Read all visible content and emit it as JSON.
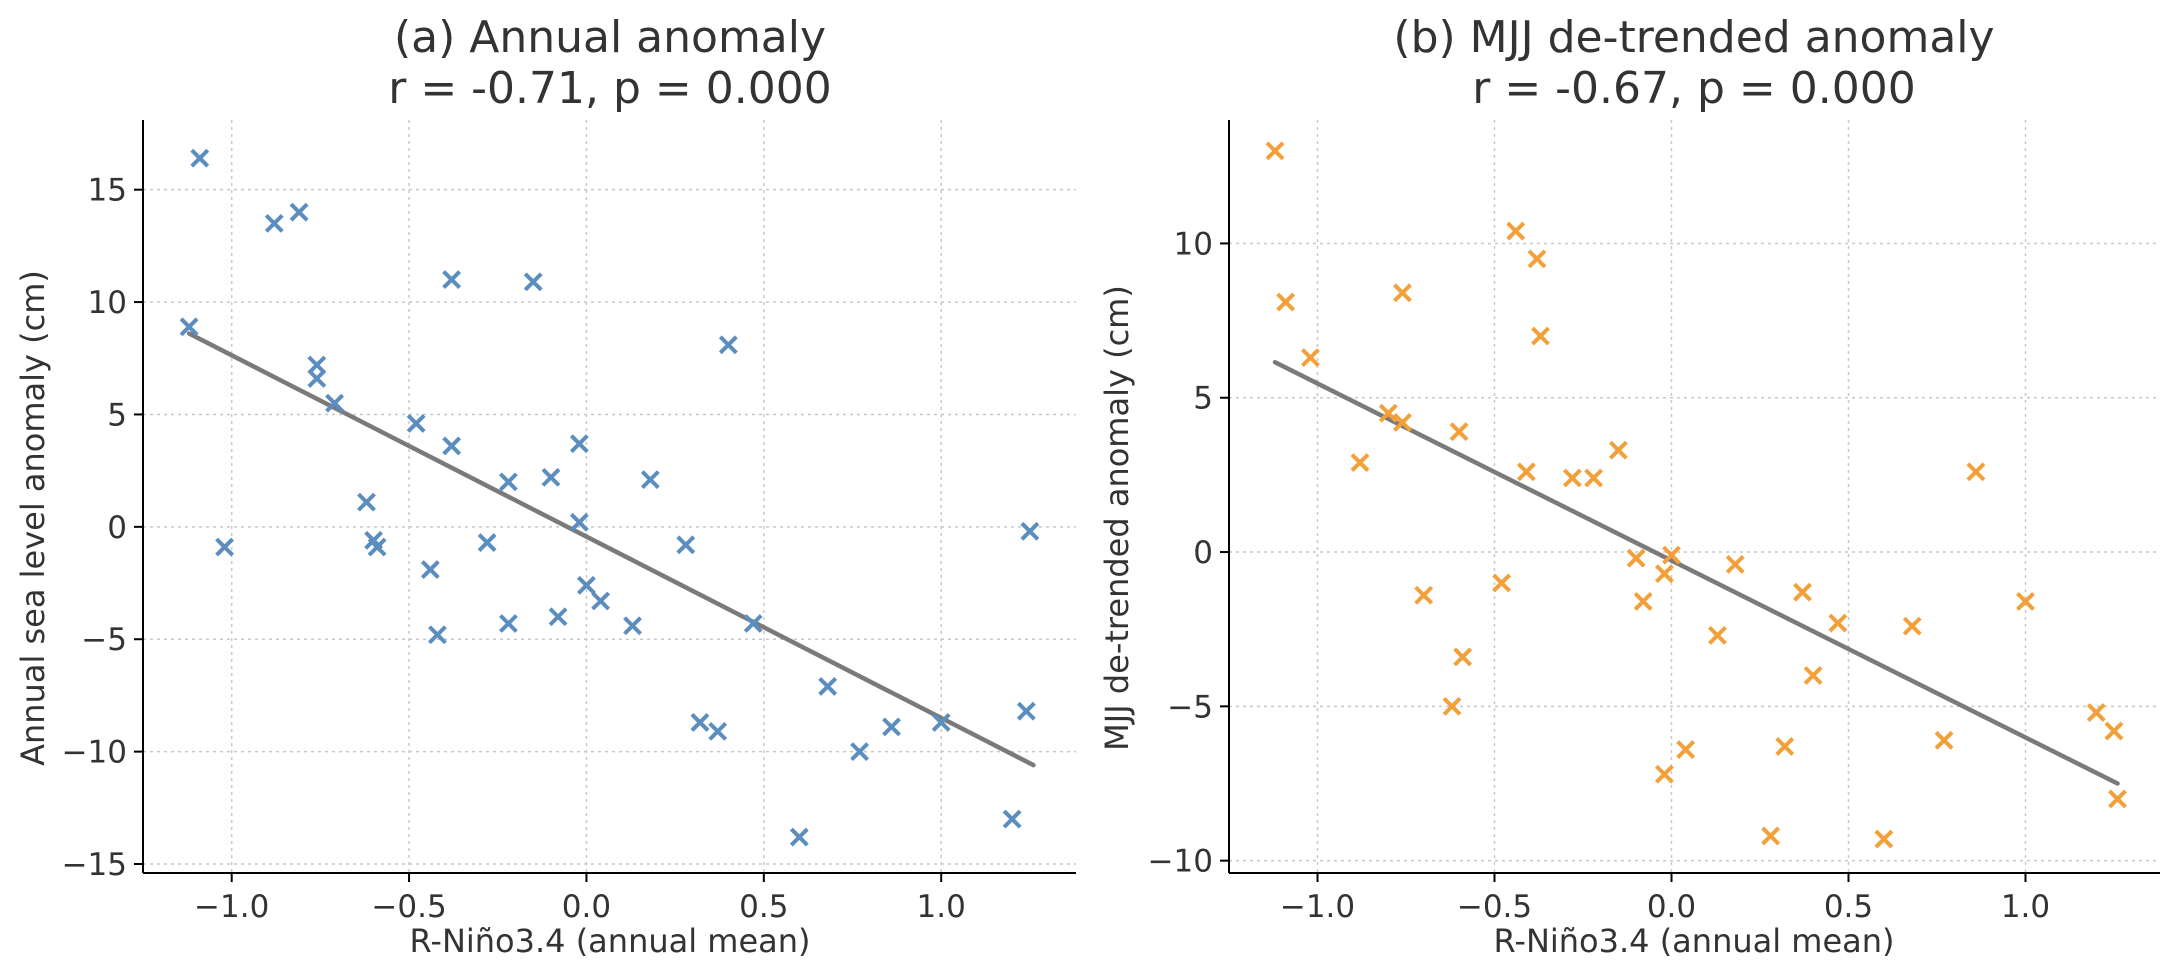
{
  "chart_data": [
    {
      "type": "scatter",
      "title_line1": "(a) Annual anomaly",
      "title_line2": "r = -0.71, p = 0.000",
      "xlabel": "R-Niño3.4 (annual mean)",
      "ylabel": "Annual sea level anomaly (cm)",
      "xlim": [
        -1.25,
        1.38
      ],
      "ylim": [
        -15.4,
        18.1
      ],
      "xticks": [
        -1.0,
        -0.5,
        0.0,
        0.5,
        1.0
      ],
      "xtick_labels": [
        "−1.0",
        "−0.5",
        "0.0",
        "0.5",
        "1.0"
      ],
      "yticks": [
        -15,
        -10,
        -5,
        0,
        5,
        10,
        15
      ],
      "ytick_labels": [
        "−15",
        "−10",
        "−5",
        "0",
        "5",
        "10",
        "15"
      ],
      "grid": true,
      "marker": "x",
      "color": "#5b8ebf",
      "fit_line": {
        "x": [
          -1.12,
          1.26
        ],
        "y": [
          8.6,
          -10.6
        ],
        "color": "#7a7a7a"
      },
      "points": [
        [
          -1.09,
          16.4
        ],
        [
          -0.88,
          13.5
        ],
        [
          -0.81,
          14.0
        ],
        [
          -1.12,
          8.9
        ],
        [
          -0.38,
          11.0
        ],
        [
          -0.15,
          10.9
        ],
        [
          0.4,
          8.1
        ],
        [
          -0.76,
          7.2
        ],
        [
          -0.76,
          6.6
        ],
        [
          -0.71,
          5.5
        ],
        [
          -0.48,
          4.6
        ],
        [
          -0.38,
          3.6
        ],
        [
          -0.02,
          3.7
        ],
        [
          -0.22,
          2.0
        ],
        [
          -0.1,
          2.2
        ],
        [
          0.18,
          2.1
        ],
        [
          -0.62,
          1.1
        ],
        [
          -0.6,
          -0.6
        ],
        [
          -0.59,
          -0.9
        ],
        [
          -1.02,
          -0.9
        ],
        [
          -0.28,
          -0.7
        ],
        [
          -0.02,
          0.2
        ],
        [
          0.28,
          -0.8
        ],
        [
          1.25,
          -0.2
        ],
        [
          -0.44,
          -1.9
        ],
        [
          0.0,
          -2.6
        ],
        [
          0.04,
          -3.3
        ],
        [
          -0.22,
          -4.3
        ],
        [
          -0.08,
          -4.0
        ],
        [
          0.13,
          -4.4
        ],
        [
          -0.42,
          -4.8
        ],
        [
          0.47,
          -4.3
        ],
        [
          0.68,
          -7.1
        ],
        [
          0.32,
          -8.7
        ],
        [
          0.37,
          -9.1
        ],
        [
          0.86,
          -8.9
        ],
        [
          1.0,
          -8.7
        ],
        [
          1.24,
          -8.2
        ],
        [
          0.77,
          -10.0
        ],
        [
          0.6,
          -13.8
        ],
        [
          1.2,
          -13.0
        ]
      ]
    },
    {
      "type": "scatter",
      "title_line1": "(b) MJJ de-trended anomaly",
      "title_line2": "r = -0.67, p = 0.000",
      "xlabel": "R-Niño3.4 (annual mean)",
      "ylabel": "MJJ de-trended anomaly (cm)",
      "xlim": [
        -1.25,
        1.38
      ],
      "ylim": [
        -10.4,
        14.0
      ],
      "xticks": [
        -1.0,
        -0.5,
        0.0,
        0.5,
        1.0
      ],
      "xtick_labels": [
        "−1.0",
        "−0.5",
        "0.0",
        "0.5",
        "1.0"
      ],
      "yticks": [
        -10,
        -5,
        0,
        5,
        10
      ],
      "ytick_labels": [
        "−10",
        "−5",
        "0",
        "5",
        "10"
      ],
      "grid": true,
      "marker": "x",
      "color": "#f4a03a",
      "fit_line": {
        "x": [
          -1.12,
          1.26
        ],
        "y": [
          6.15,
          -7.5
        ],
        "color": "#7a7a7a"
      },
      "points": [
        [
          -1.12,
          13.0
        ],
        [
          -1.09,
          8.1
        ],
        [
          -1.02,
          6.3
        ],
        [
          -0.76,
          8.4
        ],
        [
          -0.44,
          10.4
        ],
        [
          -0.38,
          9.5
        ],
        [
          -0.37,
          7.0
        ],
        [
          -0.8,
          4.5
        ],
        [
          -0.76,
          4.2
        ],
        [
          -0.6,
          3.9
        ],
        [
          -0.88,
          2.9
        ],
        [
          -0.41,
          2.6
        ],
        [
          -0.28,
          2.4
        ],
        [
          -0.22,
          2.4
        ],
        [
          -0.15,
          3.3
        ],
        [
          0.86,
          2.6
        ],
        [
          -0.1,
          -0.2
        ],
        [
          0.0,
          -0.1
        ],
        [
          -0.02,
          -0.7
        ],
        [
          0.18,
          -0.4
        ],
        [
          -0.08,
          -1.6
        ],
        [
          -0.7,
          -1.4
        ],
        [
          -0.48,
          -1.0
        ],
        [
          0.37,
          -1.3
        ],
        [
          0.47,
          -2.3
        ],
        [
          0.68,
          -2.4
        ],
        [
          0.13,
          -2.7
        ],
        [
          1.0,
          -1.6
        ],
        [
          -0.59,
          -3.4
        ],
        [
          0.4,
          -4.0
        ],
        [
          -0.62,
          -5.0
        ],
        [
          0.04,
          -6.4
        ],
        [
          0.32,
          -6.3
        ],
        [
          0.77,
          -6.1
        ],
        [
          1.2,
          -5.2
        ],
        [
          1.25,
          -5.8
        ],
        [
          1.26,
          -8.0
        ],
        [
          -0.02,
          -7.2
        ],
        [
          0.28,
          -9.2
        ],
        [
          0.6,
          -9.3
        ]
      ]
    }
  ]
}
